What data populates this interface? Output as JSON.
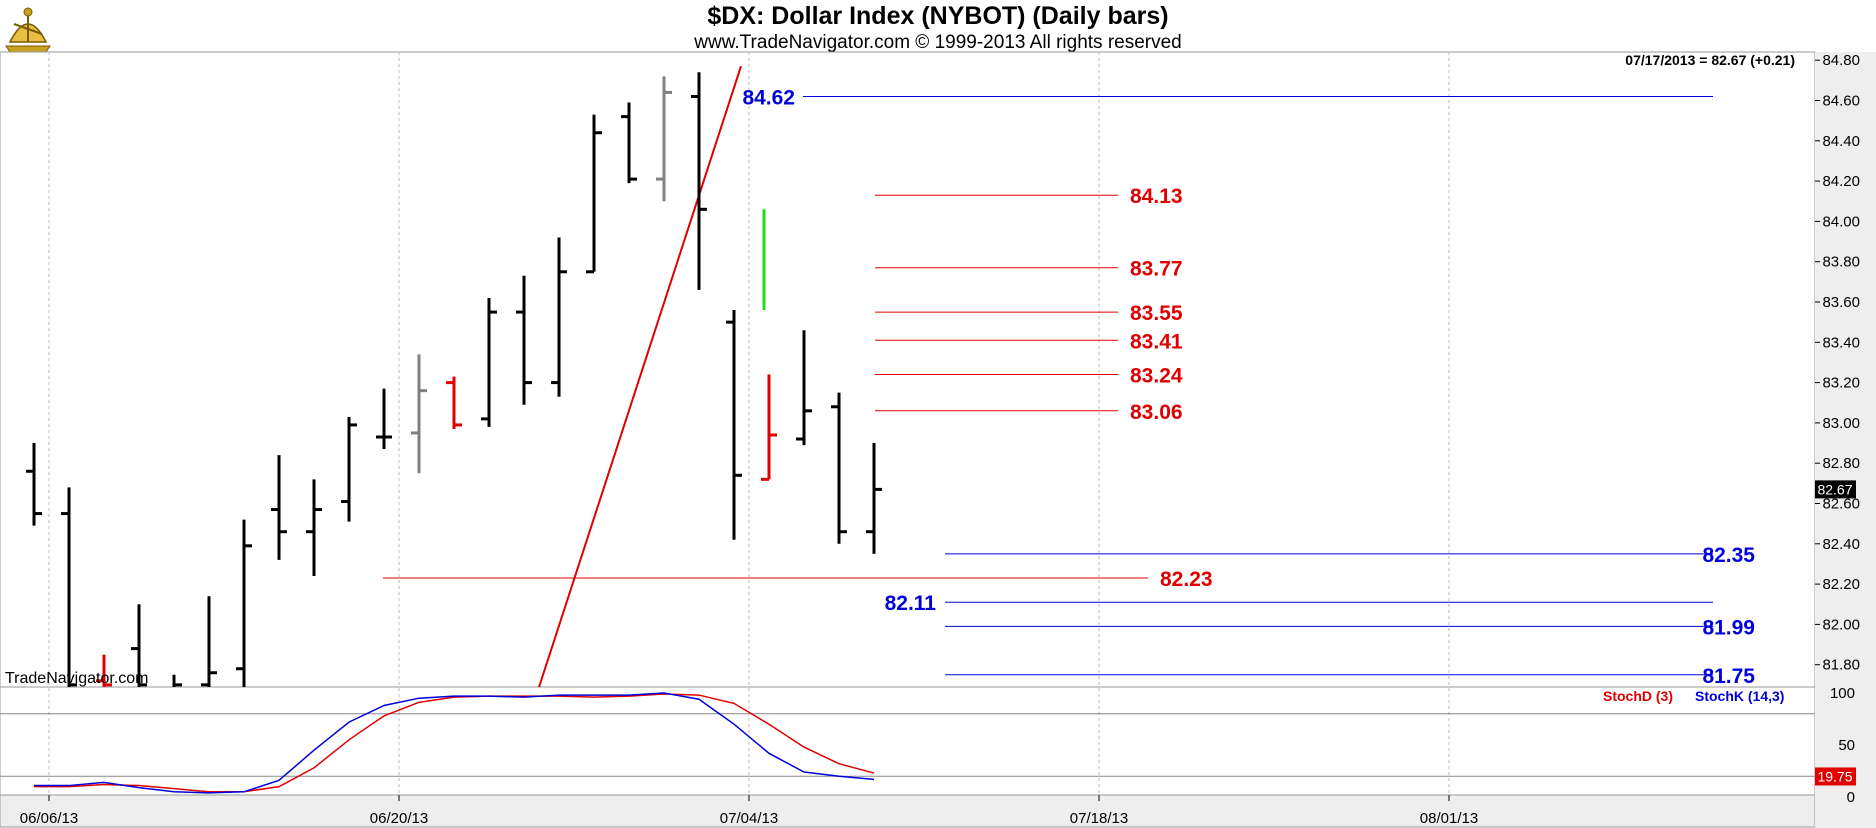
{
  "header": {
    "title": "$DX:  Dollar Index (NYBOT)  (Daily bars)",
    "subtitle": "www.TradeNavigator.com © 1999-2013 All rights reserved",
    "info": "07/17/2013 = 82.67 (+0.21)",
    "watermark": "TradeNavigator.com"
  },
  "chart_data": [
    {
      "type": "ohlc",
      "title": "$DX:  Dollar Index (NYBOT)  (Daily bars)",
      "y_range": [
        81.62,
        84.9
      ],
      "y_ticks": [
        "84.80",
        "84.60",
        "84.40",
        "84.20",
        "84.00",
        "83.80",
        "83.60",
        "83.40",
        "83.20",
        "83.00",
        "82.80",
        "82.60",
        "82.40",
        "82.20",
        "82.00",
        "81.80"
      ],
      "x_tick_labels": [
        {
          "label": "06/06/13",
          "bar": 0
        },
        {
          "label": "06/20/13",
          "bar": 10
        },
        {
          "label": "07/04/13",
          "bar": 20
        },
        {
          "label": "07/18/13",
          "bar": 30
        },
        {
          "label": "08/01/13",
          "bar": 40
        }
      ],
      "last_price": "82.67",
      "bars": [
        {
          "o": 82.76,
          "h": 82.9,
          "l": 82.49,
          "c": 82.55,
          "color": "#000000"
        },
        {
          "o": 82.55,
          "h": 82.68,
          "l": 81.6,
          "c": 81.7,
          "color": "#000000"
        },
        {
          "o": 81.72,
          "h": 81.85,
          "l": 81.68,
          "c": 81.7,
          "color": "#e00000"
        },
        {
          "o": 81.88,
          "h": 82.1,
          "l": 81.65,
          "c": 81.7,
          "color": "#000000"
        },
        {
          "o": 81.68,
          "h": 81.75,
          "l": 81.6,
          "c": 81.7,
          "color": "#000000"
        },
        {
          "o": 81.7,
          "h": 82.14,
          "l": 81.6,
          "c": 81.76,
          "color": "#000000"
        },
        {
          "o": 81.78,
          "h": 82.52,
          "l": 81.6,
          "c": 82.39,
          "color": "#000000"
        },
        {
          "o": 82.57,
          "h": 82.84,
          "l": 82.32,
          "c": 82.46,
          "color": "#000000"
        },
        {
          "o": 82.46,
          "h": 82.72,
          "l": 82.24,
          "c": 82.57,
          "color": "#000000"
        },
        {
          "o": 82.61,
          "h": 83.03,
          "l": 82.51,
          "c": 82.99,
          "color": "#000000"
        },
        {
          "o": 82.93,
          "h": 83.17,
          "l": 82.87,
          "c": 82.93,
          "color": "#000000"
        },
        {
          "o": 82.95,
          "h": 83.34,
          "l": 82.75,
          "c": 83.16,
          "color": "#808080"
        },
        {
          "o": 83.2,
          "h": 83.23,
          "l": 82.97,
          "c": 82.99,
          "color": "#e00000"
        },
        {
          "o": 83.02,
          "h": 83.62,
          "l": 82.98,
          "c": 83.55,
          "color": "#000000"
        },
        {
          "o": 83.55,
          "h": 83.73,
          "l": 83.09,
          "c": 83.2,
          "color": "#000000"
        },
        {
          "o": 83.2,
          "h": 83.92,
          "l": 83.13,
          "c": 83.75,
          "color": "#000000"
        },
        {
          "o": 83.75,
          "h": 84.53,
          "l": 83.75,
          "c": 84.44,
          "color": "#000000"
        },
        {
          "o": 84.52,
          "h": 84.59,
          "l": 84.19,
          "c": 84.21,
          "color": "#000000"
        },
        {
          "o": 84.21,
          "h": 84.72,
          "l": 84.1,
          "c": 84.64,
          "color": "#808080"
        },
        {
          "o": 84.62,
          "h": 84.74,
          "l": 83.66,
          "c": 84.06,
          "color": "#000000"
        },
        {
          "o": 83.5,
          "h": 83.56,
          "l": 82.42,
          "c": 82.74,
          "color": "#000000"
        },
        {
          "o": 82.72,
          "h": 83.24,
          "l": 82.72,
          "c": 82.94,
          "color": "#e00000"
        },
        {
          "o": 82.92,
          "h": 83.46,
          "l": 82.89,
          "c": 83.06,
          "color": "#000000"
        },
        {
          "o": 83.08,
          "h": 83.15,
          "l": 82.4,
          "c": 82.46,
          "color": "#000000"
        },
        {
          "o": 82.46,
          "h": 82.9,
          "l": 82.35,
          "c": 82.67,
          "color": "#000000"
        }
      ],
      "green_segment": {
        "bar": 20,
        "from": 84.06,
        "to": 83.56
      },
      "trendline": {
        "from": {
          "bar": 14.3,
          "value": 81.62
        },
        "to": {
          "bar": 20.2,
          "value": 84.77
        },
        "color": "#e00000"
      },
      "annotations": [
        {
          "label": "84.62",
          "value": 84.62,
          "color": "#0000dd",
          "side": "left-of-line"
        },
        {
          "label": "84.13",
          "value": 84.13,
          "color": "#e00000",
          "side": "right"
        },
        {
          "label": "83.77",
          "value": 83.77,
          "color": "#e00000",
          "side": "right"
        },
        {
          "label": "83.55",
          "value": 83.55,
          "color": "#e00000",
          "side": "right"
        },
        {
          "label": "83.41",
          "value": 83.41,
          "color": "#e00000",
          "side": "right"
        },
        {
          "label": "83.24",
          "value": 83.24,
          "color": "#e00000",
          "side": "right"
        },
        {
          "label": "83.06",
          "value": 83.06,
          "color": "#e00000",
          "side": "right"
        },
        {
          "label": "82.35",
          "value": 82.35,
          "color": "#0000dd",
          "side": "far-right"
        },
        {
          "label": "82.23",
          "value": 82.23,
          "color": "#e00000",
          "side": "right"
        },
        {
          "label": "82.11",
          "value": 82.11,
          "color": "#0000dd",
          "side": "left-of-line"
        },
        {
          "label": "81.99",
          "value": 81.99,
          "color": "#0000dd",
          "side": "far-right"
        },
        {
          "label": "81.75",
          "value": 81.75,
          "color": "#0000dd",
          "side": "far-right"
        }
      ]
    },
    {
      "type": "line",
      "y_range": [
        0,
        110
      ],
      "y_ticks": [
        "100",
        "50",
        "0"
      ],
      "reference_lines": [
        80,
        20
      ],
      "last_value": "19.75",
      "series": [
        {
          "name": "StochD (3)",
          "color": "#e00000",
          "values": [
            10,
            10,
            12,
            11,
            8,
            5,
            5,
            10,
            28,
            55,
            78,
            91,
            96,
            97,
            97,
            97,
            96,
            97,
            99,
            98,
            90,
            70,
            48,
            32,
            23
          ]
        },
        {
          "name": "StochK (14,3)",
          "color": "#0000dd",
          "values": [
            11,
            11,
            14,
            9,
            5,
            4,
            5,
            16,
            45,
            72,
            88,
            95,
            97,
            97,
            96,
            98,
            98,
            98,
            100,
            94,
            70,
            42,
            24,
            20,
            17
          ]
        }
      ]
    }
  ]
}
